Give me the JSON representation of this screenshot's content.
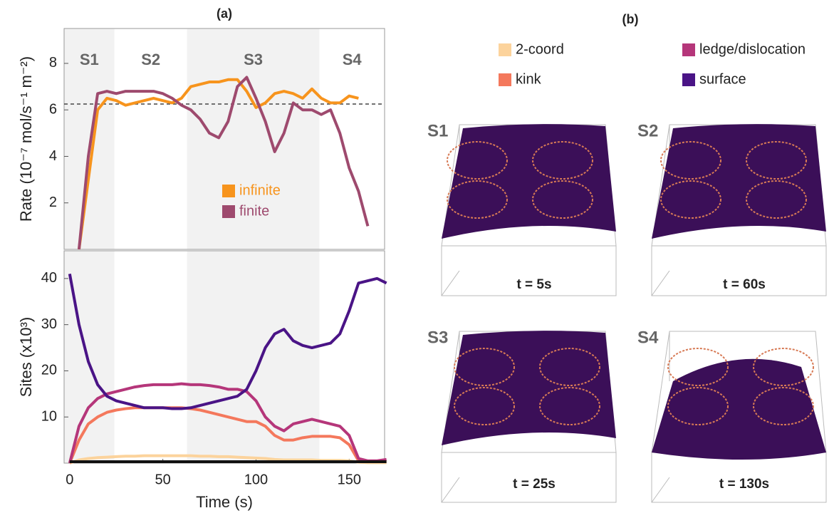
{
  "panel_titles": [
    "(a)",
    "(b)"
  ],
  "chart_data": [
    {
      "type": "line",
      "ylabel": "Rate (10⁻⁷ mol/s⁻¹ m⁻²)",
      "xlim": [
        -3,
        169
      ],
      "ylim": [
        0,
        9.5
      ],
      "yticks": [
        2,
        4,
        6,
        8
      ],
      "phases": [
        {
          "label": "S1",
          "range": [
            -3,
            24
          ],
          "shaded": true
        },
        {
          "label": "S2",
          "range": [
            24,
            63
          ],
          "shaded": false
        },
        {
          "label": "S3",
          "range": [
            63,
            134
          ],
          "shaded": true
        },
        {
          "label": "S4",
          "range": [
            134,
            169
          ],
          "shaded": false
        }
      ],
      "reference_line": 6.25,
      "legend": "lower right",
      "x": [
        0,
        5,
        10,
        15,
        20,
        25,
        30,
        35,
        40,
        45,
        50,
        55,
        60,
        65,
        70,
        75,
        80,
        85,
        90,
        95,
        100,
        105,
        110,
        115,
        120,
        125,
        130,
        135,
        140,
        145,
        150,
        155,
        160,
        165,
        170
      ],
      "series": [
        {
          "name": "infinite",
          "color": "#f7941d",
          "values": [
            null,
            0,
            3,
            6,
            6.5,
            6.4,
            6.2,
            6.3,
            6.4,
            6.5,
            6.4,
            6.3,
            6.5,
            7,
            7.1,
            7.2,
            7.2,
            7.3,
            7.3,
            6.8,
            6.1,
            6.3,
            6.7,
            6.8,
            6.7,
            6.5,
            6.9,
            6.5,
            6.3,
            6.3,
            6.6,
            6.5,
            null,
            null,
            null
          ]
        },
        {
          "name": "finite",
          "color": "#9e4a6e",
          "values": [
            null,
            0,
            4,
            6.7,
            6.8,
            6.7,
            6.8,
            6.8,
            6.8,
            6.8,
            6.7,
            6.5,
            6.2,
            6,
            5.6,
            5,
            4.8,
            5.5,
            7,
            7.4,
            6.5,
            5.5,
            4.2,
            5,
            6.3,
            6,
            6,
            5.8,
            6,
            5,
            3.5,
            2.5,
            1,
            null,
            null
          ]
        }
      ]
    },
    {
      "type": "line",
      "ylabel": "Sites (x10³)",
      "xlabel": "Time (s)",
      "xlim": [
        -3,
        169
      ],
      "ylim": [
        0,
        46
      ],
      "yticks": [
        10,
        20,
        30,
        40
      ],
      "xticks": [
        0,
        50,
        100,
        150
      ],
      "x": [
        0,
        5,
        10,
        15,
        20,
        25,
        30,
        35,
        40,
        45,
        50,
        55,
        60,
        65,
        70,
        75,
        80,
        85,
        90,
        95,
        100,
        105,
        110,
        115,
        120,
        125,
        130,
        135,
        140,
        145,
        150,
        155,
        160,
        165,
        170
      ],
      "series": [
        {
          "name": "2-coord",
          "color": "#fcd39c",
          "values": [
            0,
            0.7,
            1,
            1.2,
            1.3,
            1.4,
            1.5,
            1.5,
            1.6,
            1.6,
            1.6,
            1.6,
            1.6,
            1.6,
            1.5,
            1.5,
            1.4,
            1.4,
            1.3,
            1.2,
            1.1,
            1,
            0.8,
            0.7,
            0.7,
            0.7,
            0.7,
            0.6,
            0.6,
            0.6,
            0.5,
            0.2,
            0.1,
            0.1,
            0.1
          ]
        },
        {
          "name": "kink",
          "color": "#f4785c",
          "values": [
            0,
            5,
            8.5,
            10,
            11,
            11.5,
            11.8,
            12,
            12,
            12,
            12,
            12,
            12,
            11.8,
            11.5,
            11,
            10.5,
            10,
            9.5,
            9,
            9,
            8,
            6,
            5,
            5,
            5.5,
            5.8,
            5.8,
            5.8,
            5.5,
            4,
            0.5,
            0.3,
            0.3,
            0.3
          ]
        },
        {
          "name": "ledge/dislocation",
          "color": "#b5367a",
          "values": [
            0,
            8,
            12,
            14,
            15,
            15.5,
            16,
            16.5,
            16.8,
            17,
            17,
            17,
            17.2,
            17,
            17,
            16.8,
            16.5,
            16,
            16,
            15.5,
            13.5,
            10,
            8,
            7,
            8.5,
            9,
            9.5,
            9,
            8.5,
            8,
            6,
            1,
            0.5,
            0.5,
            0.8
          ]
        },
        {
          "name": "surface",
          "color": "#4a1486",
          "values": [
            41,
            30,
            22,
            17,
            14.5,
            13.5,
            13,
            12.5,
            12,
            12,
            12,
            11.8,
            11.8,
            12,
            12.5,
            13,
            13.5,
            14,
            14.5,
            16,
            20,
            25,
            28,
            29,
            26.5,
            25.5,
            25,
            25.5,
            26,
            28,
            33,
            39,
            39.5,
            40,
            39
          ]
        },
        {
          "color": "#111111",
          "values": [
            0.3,
            0.3,
            0.3,
            0.3,
            0.3,
            0.3,
            0.3,
            0.3,
            0.3,
            0.3,
            0.3,
            0.3,
            0.3,
            0.3,
            0.3,
            0.3,
            0.3,
            0.3,
            0.3,
            0.3,
            0.3,
            0.3,
            0.3,
            0.3,
            0.3,
            0.3,
            0.3,
            0.3,
            0.3,
            0.3,
            0.3,
            0.3,
            0.3,
            0.3,
            0.3
          ]
        }
      ]
    }
  ],
  "snapshots": [
    {
      "label": "S1",
      "time": "t = 5s"
    },
    {
      "label": "S2",
      "time": "t = 60s"
    },
    {
      "label": "S3",
      "time": "t = 25s"
    },
    {
      "label": "S4",
      "time": "t = 130s"
    }
  ]
}
